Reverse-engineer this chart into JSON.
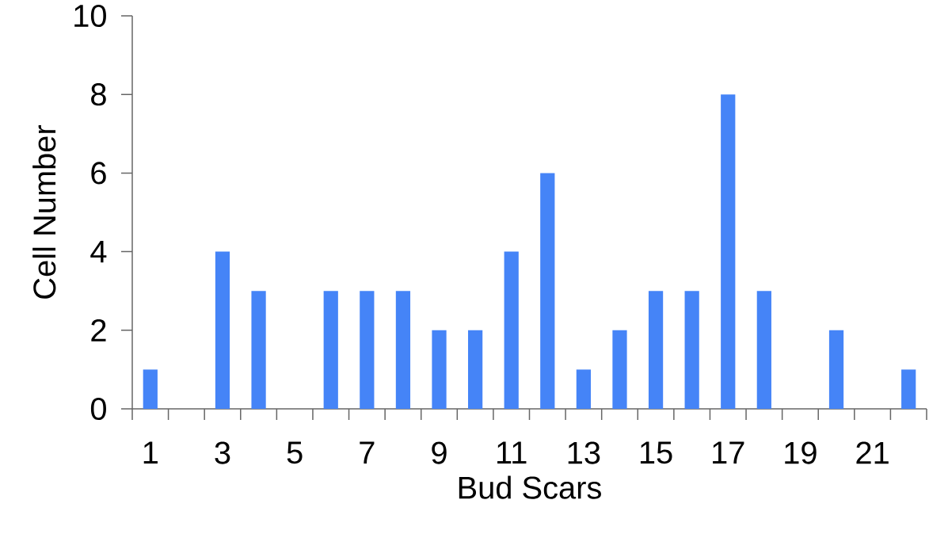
{
  "chart_data": {
    "type": "bar",
    "xlabel": "Bud Scars",
    "ylabel": "Cell Number",
    "categories": [
      "1",
      null,
      "3",
      null,
      "5",
      null,
      "7",
      null,
      "9",
      null,
      "11",
      null,
      "13",
      null,
      "15",
      null,
      "17",
      null,
      "19",
      null,
      "21",
      null
    ],
    "values": [
      1,
      0,
      4,
      3,
      0,
      3,
      3,
      3,
      2,
      2,
      4,
      6,
      1,
      2,
      3,
      3,
      8,
      3,
      0,
      2,
      0,
      1
    ],
    "color": "#4584f7",
    "ylim": [
      0,
      10
    ],
    "yticks": [
      0,
      2,
      4,
      6,
      8,
      10
    ],
    "grid": false
  }
}
